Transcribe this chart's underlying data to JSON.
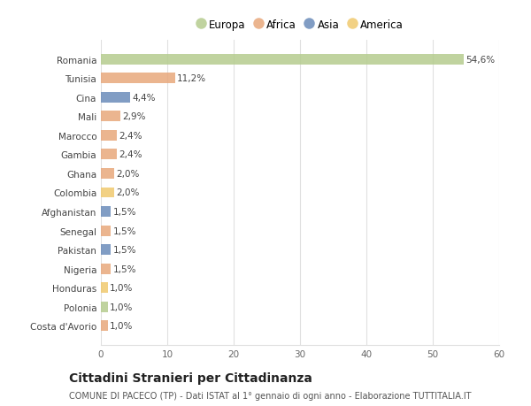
{
  "categories": [
    "Romania",
    "Tunisia",
    "Cina",
    "Mali",
    "Marocco",
    "Gambia",
    "Ghana",
    "Colombia",
    "Afghanistan",
    "Senegal",
    "Pakistan",
    "Nigeria",
    "Honduras",
    "Polonia",
    "Costa d'Avorio"
  ],
  "values": [
    54.6,
    11.2,
    4.4,
    2.9,
    2.4,
    2.4,
    2.0,
    2.0,
    1.5,
    1.5,
    1.5,
    1.5,
    1.0,
    1.0,
    1.0
  ],
  "labels": [
    "54,6%",
    "11,2%",
    "4,4%",
    "2,9%",
    "2,4%",
    "2,4%",
    "2,0%",
    "2,0%",
    "1,5%",
    "1,5%",
    "1,5%",
    "1,5%",
    "1,0%",
    "1,0%",
    "1,0%"
  ],
  "continents": [
    "Europa",
    "Africa",
    "Asia",
    "Africa",
    "Africa",
    "Africa",
    "Africa",
    "America",
    "Asia",
    "Africa",
    "Asia",
    "Africa",
    "America",
    "Europa",
    "Africa"
  ],
  "continent_colors": {
    "Europa": "#b5cc8e",
    "Africa": "#e8a87c",
    "Asia": "#6b8cba",
    "America": "#f0c96e"
  },
  "legend_order": [
    "Europa",
    "Africa",
    "Asia",
    "America"
  ],
  "title": "Cittadini Stranieri per Cittadinanza",
  "subtitle": "COMUNE DI PACECO (TP) - Dati ISTAT al 1° gennaio di ogni anno - Elaborazione TUTTITALIA.IT",
  "xlim": [
    0,
    60
  ],
  "xticks": [
    0,
    10,
    20,
    30,
    40,
    50,
    60
  ],
  "bg_color": "#ffffff",
  "grid_color": "#e0e0e0",
  "bar_alpha": 0.85,
  "label_fontsize": 7.5,
  "tick_fontsize": 7.5,
  "title_fontsize": 10,
  "subtitle_fontsize": 7
}
